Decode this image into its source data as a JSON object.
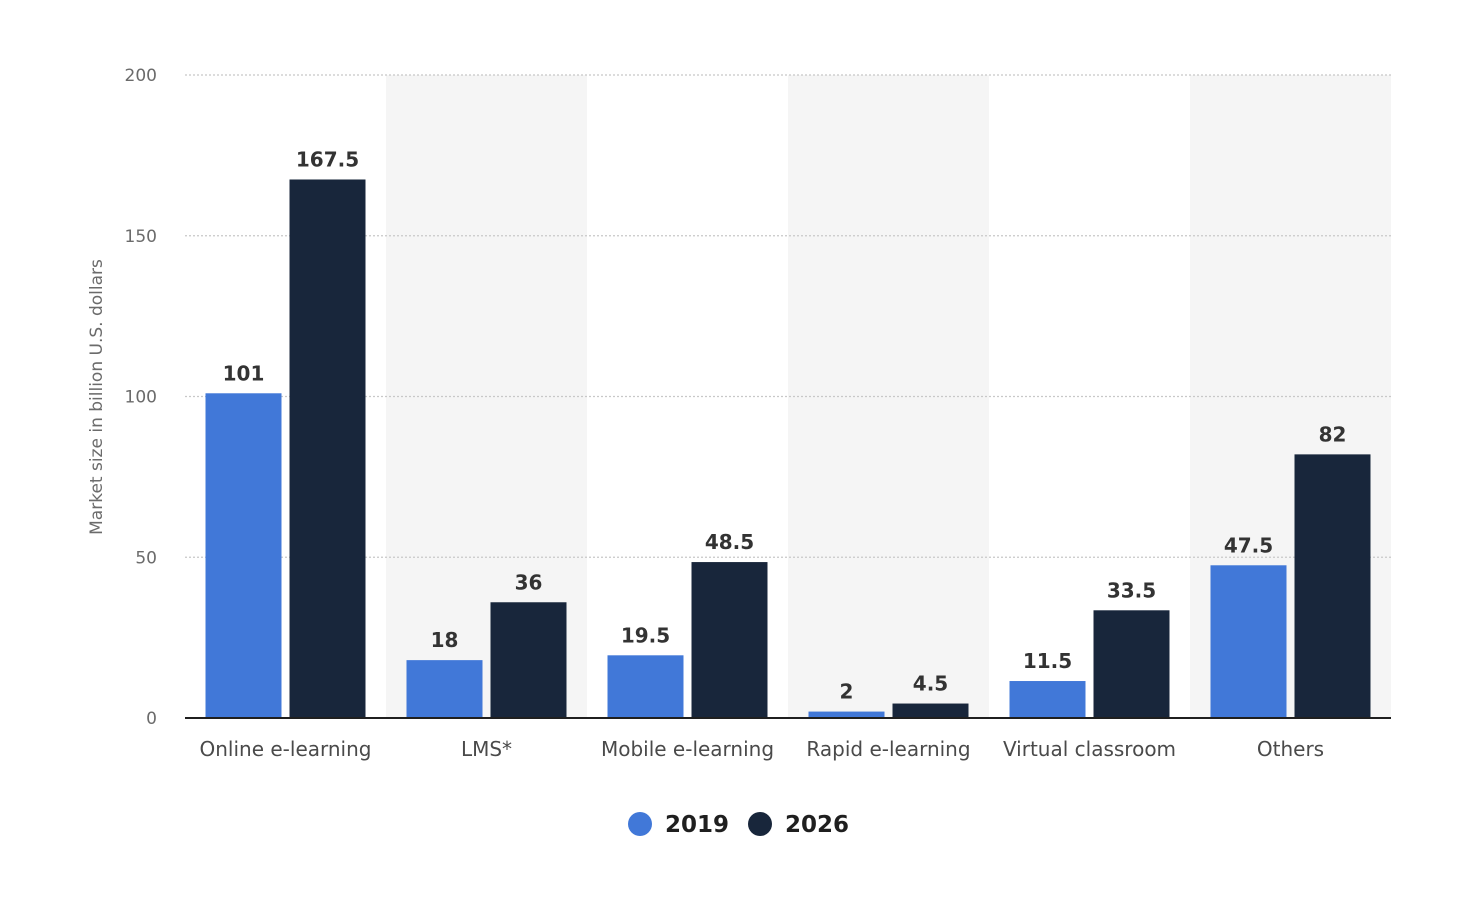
{
  "chart_data": {
    "type": "bar",
    "title": "",
    "xlabel": "",
    "ylabel": "Market size in billion U.S. dollars",
    "ylim": [
      0,
      200
    ],
    "yticks": [
      0,
      50,
      100,
      150,
      200
    ],
    "grid": true,
    "legend_position": "bottom-center",
    "categories": [
      "Online e-learning",
      "LMS*",
      "Mobile e-learning",
      "Rapid e-learning",
      "Virtual classroom",
      "Others"
    ],
    "series": [
      {
        "name": "2019",
        "color": "#4178d8",
        "values": [
          101,
          18,
          19.5,
          2,
          11.5,
          47.5
        ],
        "labels": [
          "101",
          "18",
          "19.5",
          "2",
          "11.5",
          "47.5"
        ]
      },
      {
        "name": "2026",
        "color": "#18263b",
        "values": [
          167.5,
          36,
          48.5,
          4.5,
          33.5,
          82
        ],
        "labels": [
          "167.5",
          "36",
          "48.5",
          "4.5",
          "33.5",
          "82"
        ]
      }
    ],
    "band_color": "#f5f5f5",
    "grid_color": "#c8c8c8",
    "axis_color": "#1f1f1f"
  }
}
